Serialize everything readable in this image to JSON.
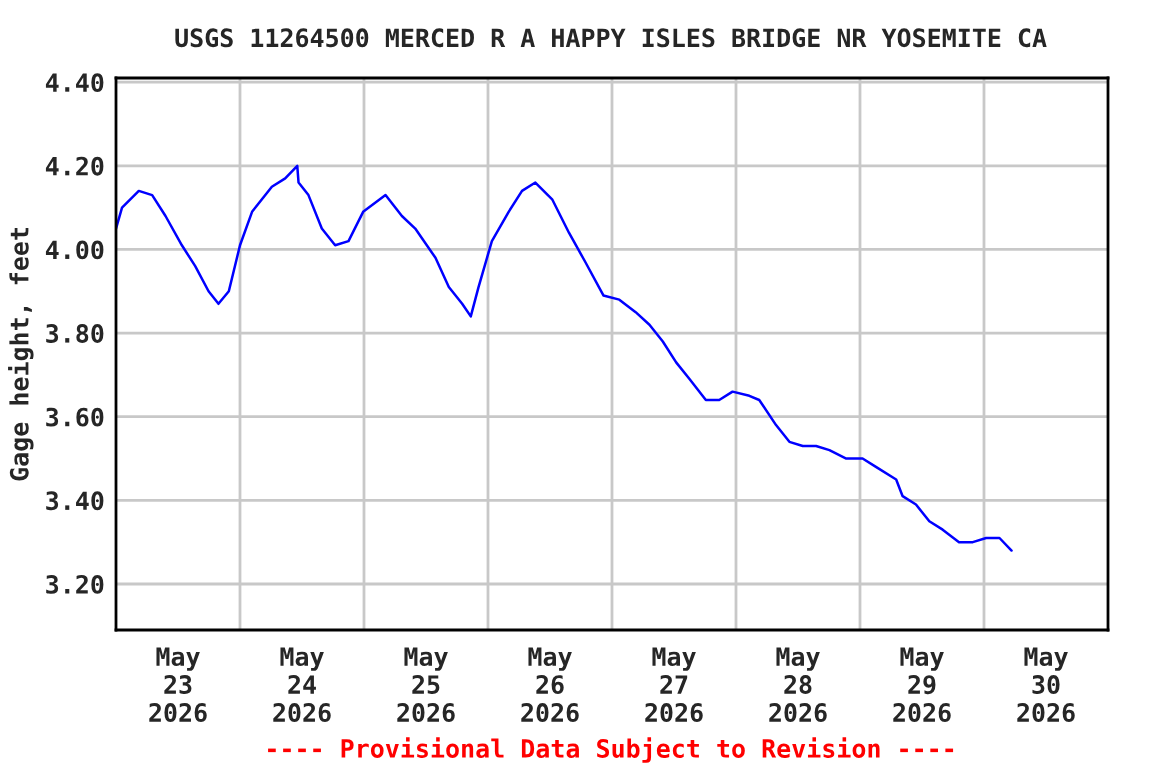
{
  "chart_data": {
    "type": "line",
    "title": "USGS 11264500 MERCED R A HAPPY ISLES BRIDGE NR YOSEMITE CA",
    "ylabel": "Gage height, feet",
    "annotations": [
      "---- Provisional Data Subject to Revision ----"
    ],
    "x": [
      "2026-05-23T00:00",
      "2026-05-23T01:10",
      "2026-05-23T04:25",
      "2026-05-23T07:00",
      "2026-05-23T09:35",
      "2026-05-23T12:45",
      "2026-05-23T15:20",
      "2026-05-23T17:55",
      "2026-05-23T19:50",
      "2026-05-23T21:50",
      "2026-05-24T00:00",
      "2026-05-24T02:20",
      "2026-05-24T06:10",
      "2026-05-24T08:45",
      "2026-05-24T11:05",
      "2026-05-24T11:20",
      "2026-05-24T13:15",
      "2026-05-24T15:50",
      "2026-05-24T18:25",
      "2026-05-24T21:00",
      "2026-05-24T23:50",
      "2026-05-25T04:10",
      "2026-05-25T07:20",
      "2026-05-25T09:55",
      "2026-05-25T13:50",
      "2026-05-25T16:25",
      "2026-05-25T19:00",
      "2026-05-25T20:40",
      "2026-05-25T22:10",
      "2026-05-26T00:45",
      "2026-05-26T04:00",
      "2026-05-26T06:35",
      "2026-05-26T09:10",
      "2026-05-26T12:25",
      "2026-05-26T15:40",
      "2026-05-26T18:50",
      "2026-05-26T22:20",
      "2026-05-27T01:25",
      "2026-05-27T04:35",
      "2026-05-27T07:15",
      "2026-05-27T09:50",
      "2026-05-27T12:25",
      "2026-05-27T15:00",
      "2026-05-27T18:10",
      "2026-05-27T20:45",
      "2026-05-27T23:20",
      "2026-05-28T02:35",
      "2026-05-28T04:30",
      "2026-05-28T07:45",
      "2026-05-28T10:20",
      "2026-05-28T12:55",
      "2026-05-28T15:30",
      "2026-05-28T18:05",
      "2026-05-28T21:20",
      "2026-05-29T00:30",
      "2026-05-29T03:05",
      "2026-05-29T07:00",
      "2026-05-29T08:15",
      "2026-05-29T10:50",
      "2026-05-29T13:25",
      "2026-05-29T16:00",
      "2026-05-29T19:10",
      "2026-05-29T21:50",
      "2026-05-30T00:25",
      "2026-05-30T03:00",
      "2026-05-30T05:20"
    ],
    "series": [
      {
        "color": "#0000ff",
        "values": [
          4.05,
          4.1,
          4.14,
          4.13,
          4.08,
          4.01,
          3.96,
          3.9,
          3.87,
          3.9,
          4.01,
          4.09,
          4.15,
          4.17,
          4.2,
          4.16,
          4.13,
          4.05,
          4.01,
          4.02,
          4.09,
          4.13,
          4.08,
          4.05,
          3.98,
          3.91,
          3.87,
          3.84,
          3.91,
          4.02,
          4.09,
          4.14,
          4.16,
          4.12,
          4.04,
          3.97,
          3.89,
          3.88,
          3.85,
          3.82,
          3.78,
          3.73,
          3.69,
          3.64,
          3.64,
          3.66,
          3.65,
          3.64,
          3.58,
          3.54,
          3.53,
          3.53,
          3.52,
          3.5,
          3.5,
          3.48,
          3.45,
          3.41,
          3.39,
          3.35,
          3.33,
          3.3,
          3.3,
          3.31,
          3.31,
          3.28
        ]
      }
    ],
    "xlim": [
      "2026-05-23T00:00",
      "2026-05-31T00:00"
    ],
    "xticks": [
      {
        "value": "2026-05-23T12:00",
        "label": "May\n23\n2026"
      },
      {
        "value": "2026-05-24T12:00",
        "label": "May\n24\n2026"
      },
      {
        "value": "2026-05-25T12:00",
        "label": "May\n25\n2026"
      },
      {
        "value": "2026-05-26T12:00",
        "label": "May\n26\n2026"
      },
      {
        "value": "2026-05-27T12:00",
        "label": "May\n27\n2026"
      },
      {
        "value": "2026-05-28T12:00",
        "label": "May\n28\n2026"
      },
      {
        "value": "2026-05-29T12:00",
        "label": "May\n29\n2026"
      },
      {
        "value": "2026-05-30T12:00",
        "label": "May\n30\n2026"
      },
      {
        "value": "2026-05-24",
        "label": null
      },
      {
        "value": "2026-05-25",
        "label": null
      },
      {
        "value": "2026-05-26",
        "label": null
      },
      {
        "value": "2026-05-27",
        "label": null
      },
      {
        "value": "2026-05-28",
        "label": null
      },
      {
        "value": "2026-05-29",
        "label": null
      },
      {
        "value": "2026-05-30",
        "label": null
      }
    ],
    "ylim": [
      3.09,
      4.41
    ],
    "yticks": [
      {
        "value": 3.2,
        "label": "3.20"
      },
      {
        "value": 3.4,
        "label": "3.40"
      },
      {
        "value": 3.6,
        "label": "3.60"
      },
      {
        "value": 3.8,
        "label": "3.80"
      },
      {
        "value": 4.0,
        "label": "4.00"
      },
      {
        "value": 4.2,
        "label": "4.20"
      },
      {
        "value": 4.4,
        "label": "4.40"
      }
    ],
    "grid": true,
    "legend": false,
    "marker": "none",
    "line_style": "solid"
  }
}
